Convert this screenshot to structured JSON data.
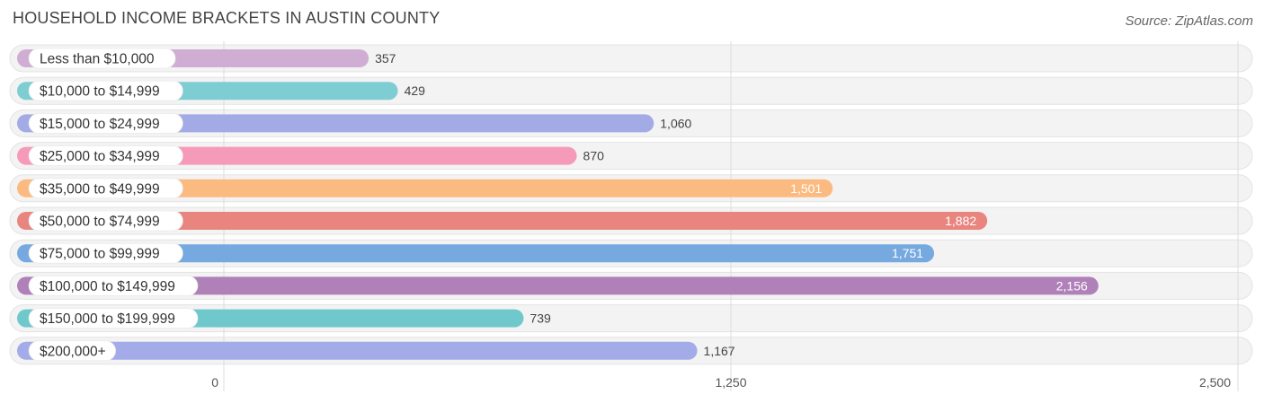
{
  "header": {
    "title": "HOUSEHOLD INCOME BRACKETS IN AUSTIN COUNTY",
    "source": "Source: ZipAtlas.com"
  },
  "chart_data": {
    "type": "bar",
    "orientation": "horizontal",
    "title": "HOUSEHOLD INCOME BRACKETS IN AUSTIN COUNTY",
    "categories": [
      "Less than $10,000",
      "$10,000 to $14,999",
      "$15,000 to $24,999",
      "$25,000 to $34,999",
      "$35,000 to $49,999",
      "$50,000 to $74,999",
      "$75,000 to $99,999",
      "$100,000 to $149,999",
      "$150,000 to $199,999",
      "$200,000+"
    ],
    "values": [
      357,
      429,
      1060,
      870,
      1501,
      1882,
      1751,
      2156,
      739,
      1167
    ],
    "value_labels": [
      "357",
      "429",
      "1,060",
      "870",
      "1,501",
      "1,882",
      "1,751",
      "2,156",
      "739",
      "1,167"
    ],
    "colors": [
      "#d0aed4",
      "#7ecdd2",
      "#a2abe6",
      "#f69ab9",
      "#fbbb80",
      "#e9857f",
      "#75a9e0",
      "#b080b9",
      "#6fc8cc",
      "#a3abe9"
    ],
    "xlim": [
      0,
      2500
    ],
    "x_ticks": [
      0,
      1250,
      2500
    ],
    "x_tick_labels": [
      "0",
      "1,250",
      "2,500"
    ],
    "grid": true
  }
}
